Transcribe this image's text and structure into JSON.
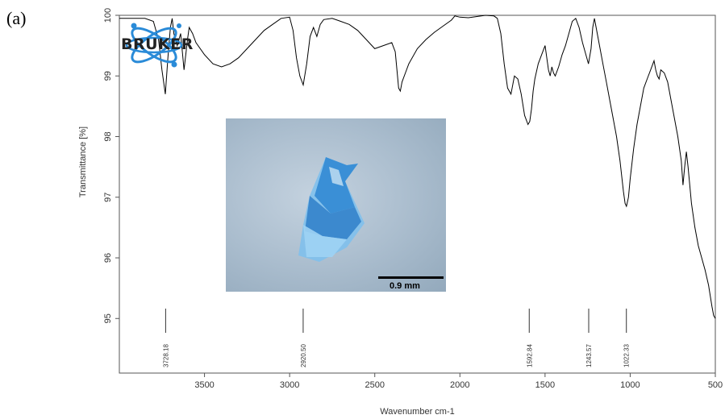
{
  "panel_label": "(a)",
  "logo": {
    "text": "BRUKER"
  },
  "inset": {
    "scale_bar_label": "0.9 mm"
  },
  "colors": {
    "spectrum_line": "#000000",
    "axis": "#555555",
    "crystal": "#3a8fd6",
    "logo_ring": "#2a8bd8"
  },
  "chart_data": {
    "type": "line",
    "xlabel": "Wavenumber cm-1",
    "ylabel": "Transmittance [%]",
    "xlim": [
      4000,
      500
    ],
    "ylim": [
      94.1,
      100
    ],
    "x_ticks": [
      "3500",
      "3000",
      "2500",
      "2000",
      "1500",
      "1000",
      "500"
    ],
    "y_ticks": [
      "95",
      "96",
      "97",
      "98",
      "99",
      "100"
    ],
    "x_reversed": true,
    "grid": false,
    "peak_labels": [
      "3728.18",
      "2920.50",
      "1592.84",
      "1243.57",
      "1022.33"
    ],
    "series": [
      {
        "x": [
          4000,
          3900,
          3850,
          3800,
          3770,
          3750,
          3730,
          3715,
          3700,
          3690,
          3680,
          3660,
          3640,
          3620,
          3600,
          3590,
          3570,
          3550,
          3500,
          3450,
          3400,
          3350,
          3300,
          3250,
          3200,
          3150,
          3100,
          3050,
          3000,
          2980,
          2960,
          2940,
          2920,
          2900,
          2880,
          2860,
          2840,
          2820,
          2800,
          2750,
          2700,
          2650,
          2600,
          2550,
          2500,
          2450,
          2400,
          2380,
          2370,
          2360,
          2350,
          2340,
          2320,
          2300,
          2250,
          2200,
          2150,
          2100,
          2050,
          2030,
          2000,
          1950,
          1900,
          1850,
          1800,
          1780,
          1760,
          1740,
          1720,
          1700,
          1680,
          1660,
          1640,
          1620,
          1600,
          1590,
          1580,
          1570,
          1560,
          1540,
          1520,
          1500,
          1480,
          1470,
          1460,
          1450,
          1440,
          1420,
          1400,
          1380,
          1360,
          1340,
          1320,
          1300,
          1280,
          1260,
          1245,
          1230,
          1220,
          1210,
          1200,
          1180,
          1160,
          1140,
          1120,
          1100,
          1080,
          1060,
          1040,
          1030,
          1022,
          1010,
          1000,
          980,
          960,
          940,
          920,
          900,
          880,
          860,
          850,
          840,
          830,
          820,
          800,
          780,
          760,
          740,
          720,
          700,
          690,
          680,
          670,
          660,
          650,
          640,
          620,
          600,
          580,
          560,
          540,
          520,
          510,
          500
        ],
        "y": [
          99.95,
          99.95,
          99.95,
          99.9,
          99.6,
          99.1,
          98.7,
          99.3,
          99.8,
          99.95,
          99.7,
          99.5,
          99.7,
          99.1,
          99.6,
          99.8,
          99.7,
          99.55,
          99.35,
          99.2,
          99.15,
          99.2,
          99.3,
          99.45,
          99.6,
          99.75,
          99.85,
          99.95,
          99.97,
          99.75,
          99.3,
          99.0,
          98.85,
          99.2,
          99.65,
          99.8,
          99.65,
          99.85,
          99.93,
          99.95,
          99.9,
          99.85,
          99.75,
          99.6,
          99.45,
          99.5,
          99.55,
          99.4,
          99.1,
          98.8,
          98.75,
          98.9,
          99.05,
          99.2,
          99.45,
          99.6,
          99.72,
          99.82,
          99.92,
          99.99,
          99.97,
          99.96,
          99.98,
          100.0,
          99.99,
          99.95,
          99.7,
          99.2,
          98.8,
          98.7,
          99.0,
          98.95,
          98.7,
          98.35,
          98.2,
          98.25,
          98.45,
          98.75,
          98.95,
          99.2,
          99.35,
          99.5,
          99.1,
          99.0,
          99.15,
          99.05,
          99.0,
          99.15,
          99.35,
          99.5,
          99.7,
          99.9,
          99.95,
          99.8,
          99.55,
          99.35,
          99.2,
          99.45,
          99.8,
          99.95,
          99.8,
          99.5,
          99.2,
          98.9,
          98.6,
          98.3,
          98.0,
          97.6,
          97.1,
          96.9,
          96.85,
          97.0,
          97.3,
          97.8,
          98.2,
          98.5,
          98.8,
          98.95,
          99.1,
          99.25,
          99.1,
          99.0,
          98.95,
          99.1,
          99.05,
          98.9,
          98.6,
          98.3,
          98.0,
          97.6,
          97.2,
          97.5,
          97.75,
          97.5,
          97.2,
          96.9,
          96.5,
          96.2,
          96.0,
          95.8,
          95.55,
          95.2,
          95.05,
          95.0
        ]
      }
    ]
  }
}
